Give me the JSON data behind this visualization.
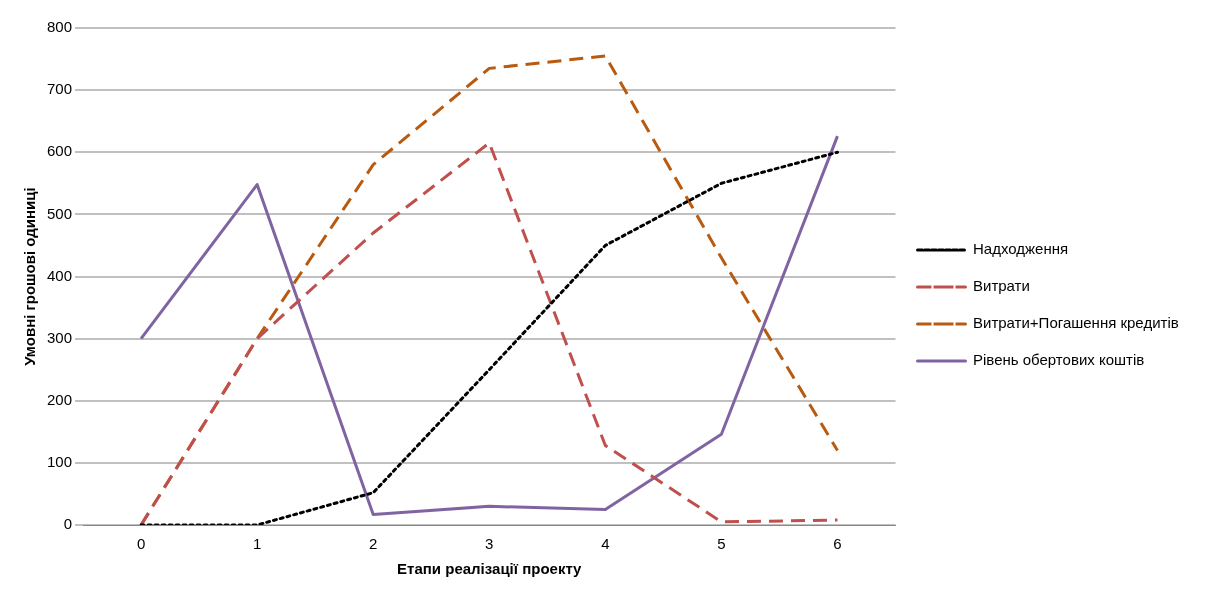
{
  "chart_data": {
    "type": "line",
    "xlabel": "Етапи реалізації проекту",
    "ylabel": "Умовні грошові одиниці",
    "categories": [
      "0",
      "1",
      "2",
      "3",
      "4",
      "5",
      "6"
    ],
    "series": [
      {
        "name": "Надходження",
        "color": "#000000",
        "line_style": "dotted",
        "values": [
          0,
          0,
          52,
          250,
          450,
          550,
          600
        ]
      },
      {
        "name": "Витрати",
        "color": "#c0504d",
        "line_style": "dashed",
        "values": [
          0,
          300,
          470,
          615,
          128,
          5,
          8
        ]
      },
      {
        "name": "Витрати+Погашення кредитів",
        "color": "#b85a10",
        "line_style": "dashed",
        "values": [
          0,
          300,
          580,
          735,
          755,
          430,
          120
        ]
      },
      {
        "name": "Рівень обертових коштів",
        "color": "#8064a2",
        "line_style": "solid",
        "values": [
          300,
          548,
          17,
          30,
          25,
          146,
          626
        ]
      }
    ],
    "ylim": [
      0,
      800
    ],
    "yticks": [
      0,
      100,
      200,
      300,
      400,
      500,
      600,
      700,
      800
    ],
    "grid": "y",
    "legend": "right",
    "marker": "none"
  }
}
